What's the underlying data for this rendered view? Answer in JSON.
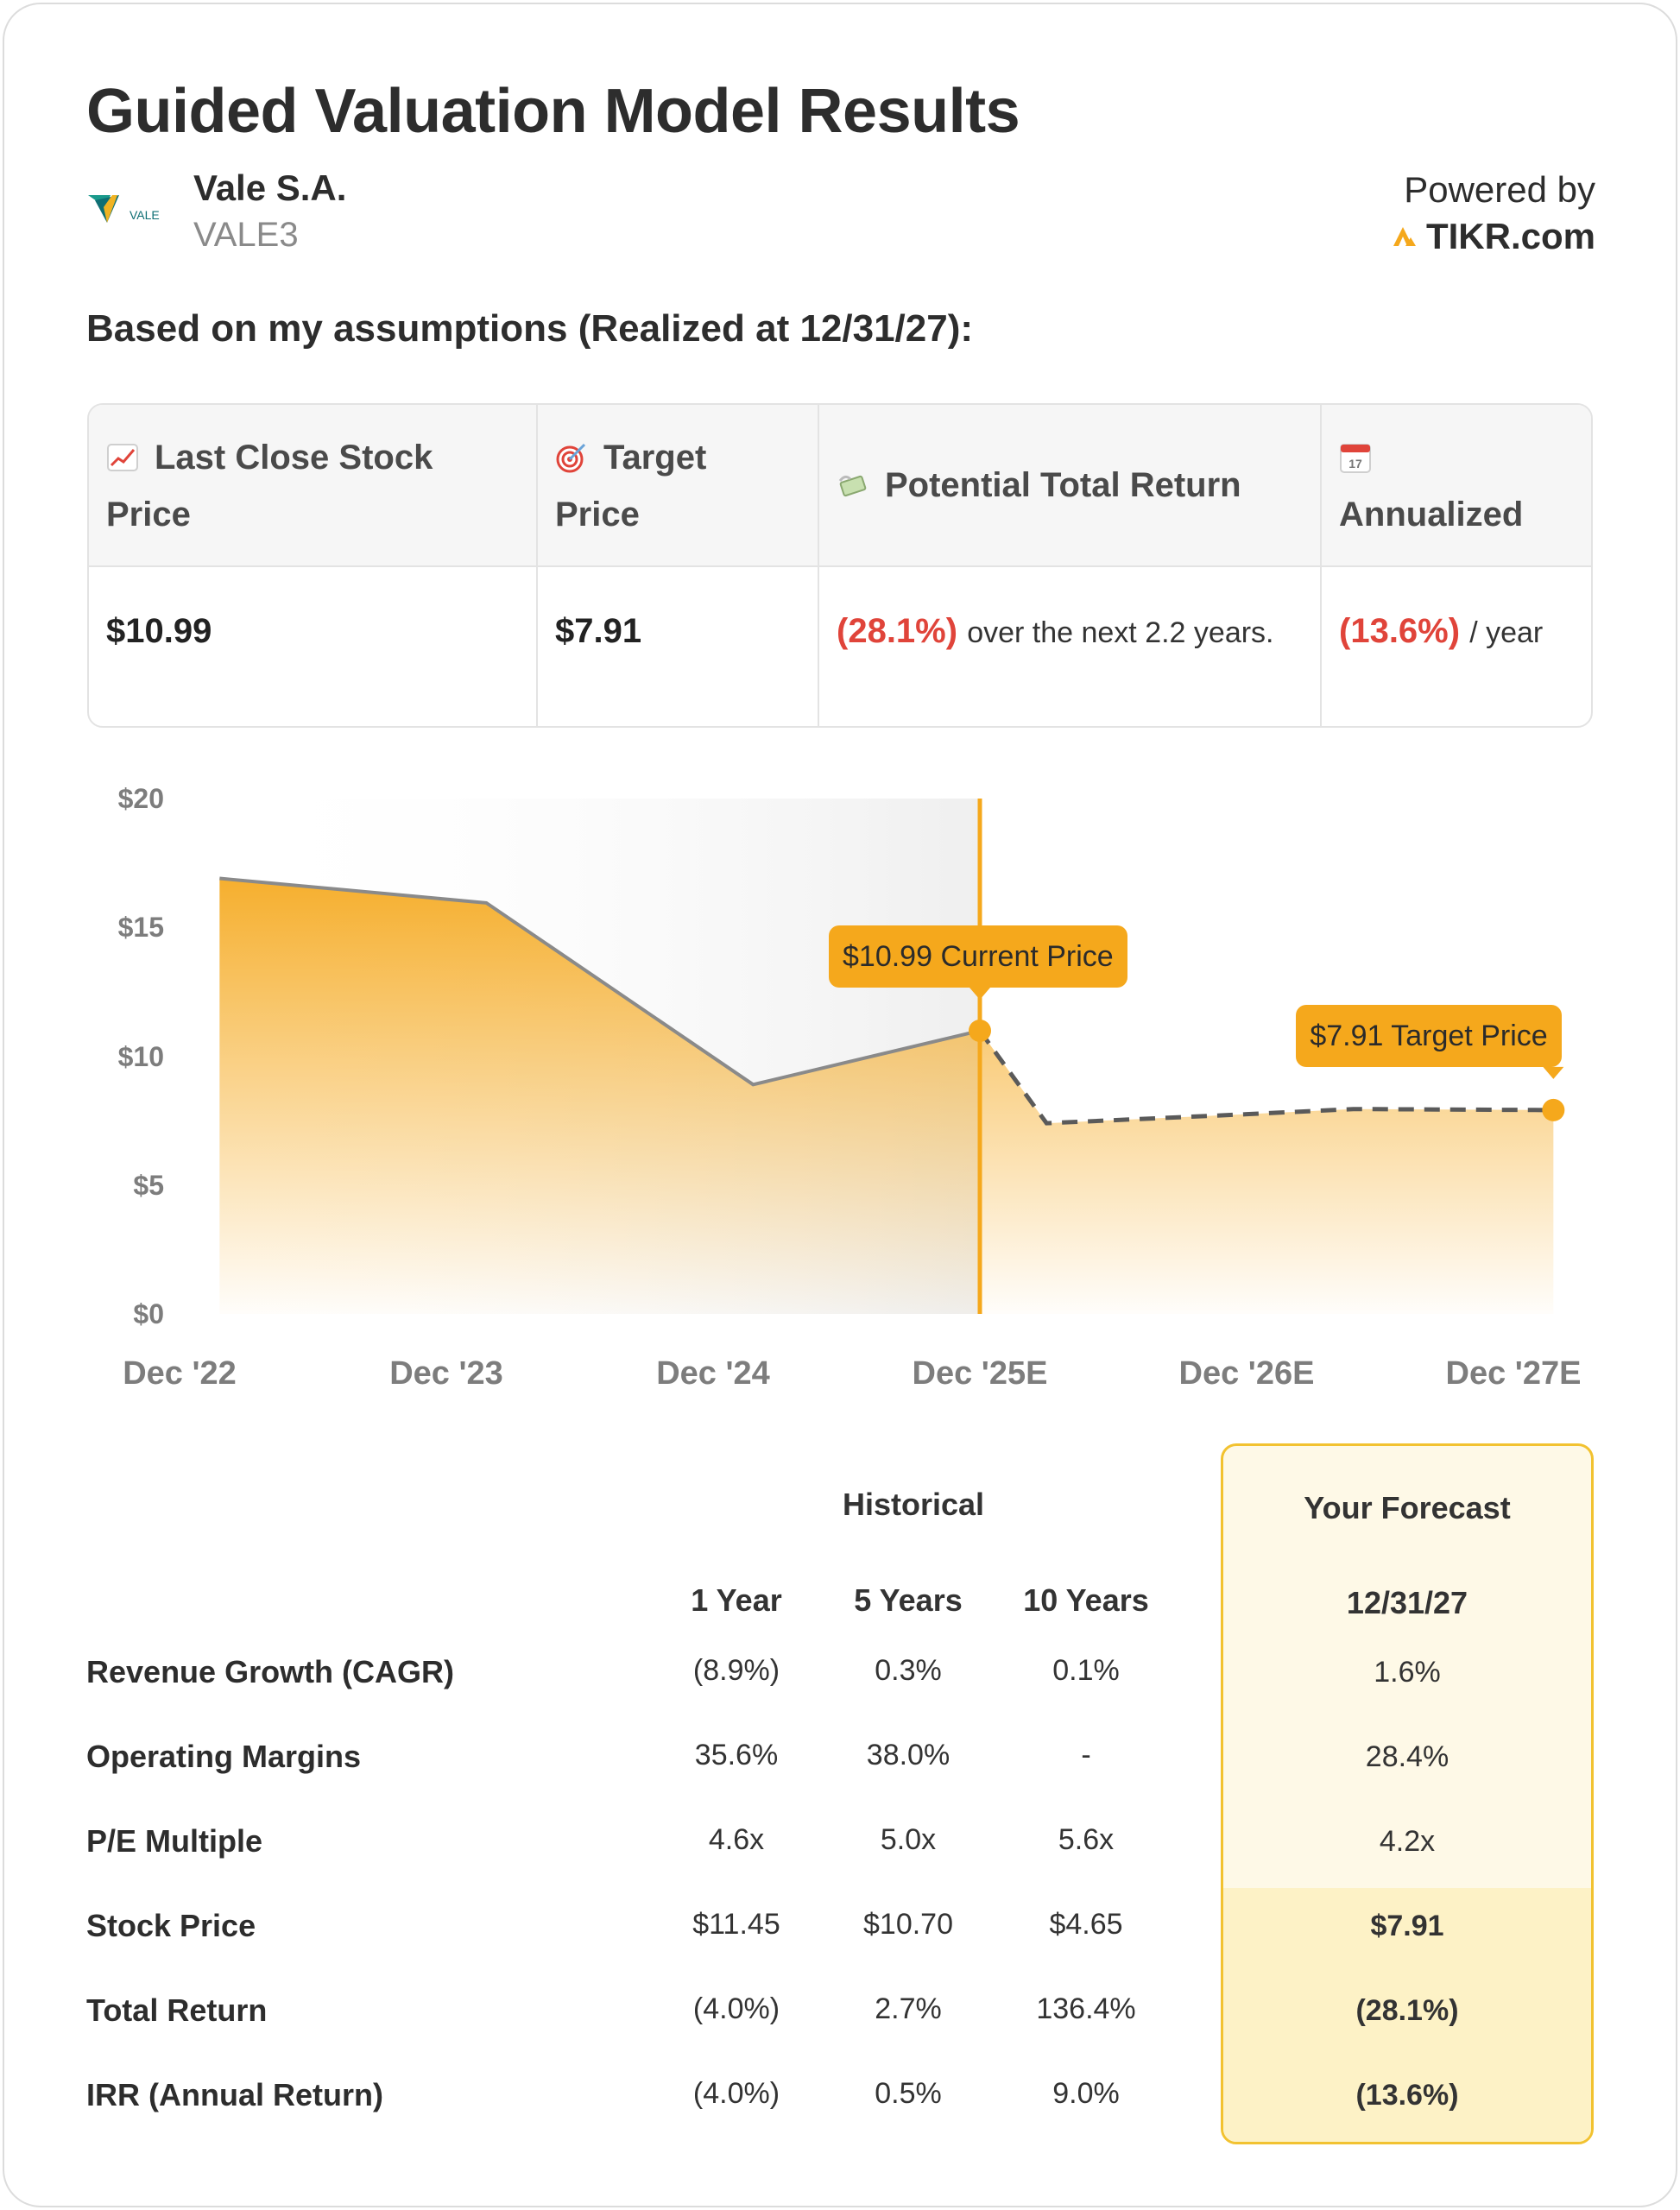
{
  "title": "Guided Valuation Model Results",
  "company": {
    "name": "Vale S.A.",
    "ticker": "VALE3",
    "logo_text": "VALE"
  },
  "powered_by": {
    "label": "Powered by",
    "brand": "TIKR.com"
  },
  "assumptions_heading": "Based on my assumptions (Realized at 12/31/27):",
  "summary": {
    "last_close": {
      "icon": "chart-increasing-icon",
      "label_line1": "Last Close Stock",
      "label_line2": "Price",
      "value": "$10.99"
    },
    "target": {
      "icon": "target-icon",
      "label_line1": "Target",
      "label_line2": "Price",
      "value": "$7.91"
    },
    "total_return": {
      "icon": "money-with-wings-icon",
      "label": "Potential Total Return",
      "value": "(28.1%)",
      "suffix": "over the next 2.2 years."
    },
    "annualized": {
      "icon": "calendar-icon",
      "icon_text": "17",
      "label": "Annualized",
      "value": "(13.6%)",
      "suffix": "/ year"
    }
  },
  "chart_data": {
    "type": "area",
    "x": [
      "Dec '22",
      "Dec '23",
      "Dec '24",
      "Dec '25E",
      "Dec '26E",
      "Dec '27E"
    ],
    "y_ticks": [
      "$20",
      "$15",
      "$10",
      "$5",
      "$0"
    ],
    "ylim": [
      0,
      20
    ],
    "historical": [
      {
        "x": 0.15,
        "y": 16.9
      },
      {
        "x": 1.15,
        "y": 15.95
      },
      {
        "x": 2.15,
        "y": 8.9
      },
      {
        "x": 3.0,
        "y": 10.99
      }
    ],
    "forecast": [
      {
        "x": 3.0,
        "y": 10.99
      },
      {
        "x": 3.25,
        "y": 7.4
      },
      {
        "x": 4.0,
        "y": 7.75
      },
      {
        "x": 4.4,
        "y": 7.95
      },
      {
        "x": 5.15,
        "y": 7.91
      }
    ],
    "current_marker": {
      "x": 3.0,
      "y": 10.99,
      "label": "$10.99 Current Price"
    },
    "target_marker": {
      "x": 5.15,
      "y": 7.91,
      "label": "$7.91 Target Price"
    },
    "colors": {
      "area": "#f5a81c",
      "line_hist": "#8a8a8a",
      "line_forecast": "#5a5a5a",
      "divider": "#f5a81c",
      "shade": "#efefef"
    }
  },
  "metrics": {
    "historical_label": "Historical",
    "columns": [
      "1 Year",
      "5 Years",
      "10 Years"
    ],
    "forecast_title": "Your Forecast",
    "forecast_date": "12/31/27",
    "rows": [
      {
        "label": "Revenue Growth (CAGR)",
        "values": [
          "(8.9%)",
          "0.3%",
          "0.1%"
        ],
        "neg": [
          true,
          false,
          false
        ],
        "forecast": "1.6%",
        "fneg": false,
        "fbold": false
      },
      {
        "label": "Operating Margins",
        "values": [
          "35.6%",
          "38.0%",
          "-"
        ],
        "neg": [
          false,
          false,
          false
        ],
        "forecast": "28.4%",
        "fneg": false,
        "fbold": false
      },
      {
        "label": "P/E Multiple",
        "values": [
          "4.6x",
          "5.0x",
          "5.6x"
        ],
        "neg": [
          false,
          false,
          false
        ],
        "forecast": "4.2x",
        "fneg": false,
        "fbold": false
      },
      {
        "label": "Stock Price",
        "values": [
          "$11.45",
          "$10.70",
          "$4.65"
        ],
        "neg": [
          false,
          false,
          false
        ],
        "forecast": "$7.91",
        "fneg": false,
        "fbold": true
      },
      {
        "label": "Total Return",
        "values": [
          "(4.0%)",
          "2.7%",
          "136.4%"
        ],
        "neg": [
          true,
          false,
          false
        ],
        "forecast": "(28.1%)",
        "fneg": true,
        "fbold": true
      },
      {
        "label": "IRR (Annual Return)",
        "values": [
          "(4.0%)",
          "0.5%",
          "9.0%"
        ],
        "neg": [
          true,
          false,
          false
        ],
        "forecast": "(13.6%)",
        "fneg": true,
        "fbold": true
      }
    ]
  }
}
